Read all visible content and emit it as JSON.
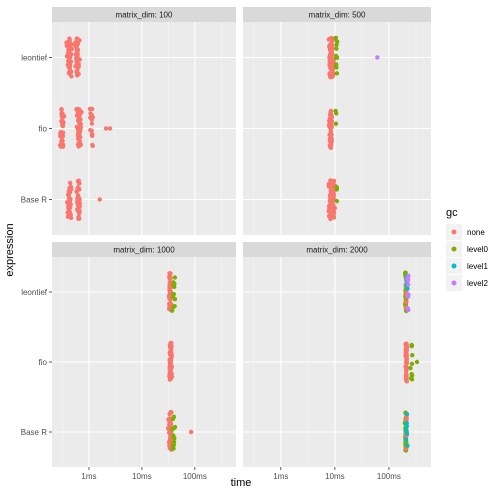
{
  "chart_data": {
    "type": "scatter",
    "subtype": "beeswarm",
    "title": "",
    "xlabel": "time",
    "ylabel": "expression",
    "x_scale": "log10",
    "x_unit": "ms",
    "xlim_ms": [
      0.2,
      600
    ],
    "x_ticks": [
      {
        "value_ms": 1,
        "label": "1ms"
      },
      {
        "value_ms": 10,
        "label": "10ms"
      },
      {
        "value_ms": 100,
        "label": "100ms"
      }
    ],
    "categories": [
      "Base R",
      "fio",
      "leontief"
    ],
    "legend": {
      "title": "gc",
      "position": "right",
      "entries": [
        {
          "name": "none",
          "color": "#F8766D"
        },
        {
          "name": "level0",
          "color": "#7CAE00"
        },
        {
          "name": "level1",
          "color": "#00BFC4"
        },
        {
          "name": "level2",
          "color": "#C77CFF"
        }
      ]
    },
    "grid": true,
    "panel_background": "#EBEBEB",
    "facets": [
      {
        "label": "matrix_dim: 100",
        "groups": [
          {
            "expression": "leontief",
            "clusters": [
              {
                "gc": "none",
                "center_ms": 0.42,
                "spread": 0.06,
                "n": 48
              },
              {
                "gc": "none",
                "center_ms": 0.6,
                "spread": 0.05,
                "n": 38
              }
            ],
            "outliers": []
          },
          {
            "expression": "fio",
            "clusters": [
              {
                "gc": "none",
                "center_ms": 0.31,
                "spread": 0.05,
                "n": 40
              },
              {
                "gc": "none",
                "center_ms": 0.65,
                "spread": 0.07,
                "n": 48
              },
              {
                "gc": "none",
                "center_ms": 1.1,
                "spread": 0.06,
                "n": 16
              }
            ],
            "outliers": [
              {
                "gc": "none",
                "x_ms": 2.1
              },
              {
                "gc": "none",
                "x_ms": 2.5
              }
            ]
          },
          {
            "expression": "Base R",
            "clusters": [
              {
                "gc": "none",
                "center_ms": 0.43,
                "spread": 0.05,
                "n": 40
              },
              {
                "gc": "none",
                "center_ms": 0.63,
                "spread": 0.05,
                "n": 36
              }
            ],
            "outliers": [
              {
                "gc": "none",
                "x_ms": 1.6
              }
            ]
          }
        ]
      },
      {
        "label": "matrix_dim: 500",
        "groups": [
          {
            "expression": "leontief",
            "clusters": [
              {
                "gc": "none",
                "center_ms": 8.7,
                "spread": 0.07,
                "n": 92
              },
              {
                "gc": "level0",
                "center_ms": 10.7,
                "spread": 0.04,
                "n": 12
              }
            ],
            "outliers": [
              {
                "gc": "level2",
                "x_ms": 61
              }
            ]
          },
          {
            "expression": "fio",
            "clusters": [
              {
                "gc": "none",
                "center_ms": 8.4,
                "spread": 0.05,
                "n": 52
              },
              {
                "gc": "level0",
                "center_ms": 10.3,
                "spread": 0.03,
                "n": 3
              }
            ],
            "outliers": []
          },
          {
            "expression": "Base R",
            "clusters": [
              {
                "gc": "none",
                "center_ms": 8.9,
                "spread": 0.08,
                "n": 100
              },
              {
                "gc": "level0",
                "center_ms": 11.0,
                "spread": 0.03,
                "n": 4
              }
            ],
            "outliers": []
          }
        ]
      },
      {
        "label": "matrix_dim: 1000",
        "groups": [
          {
            "expression": "leontief",
            "clusters": [
              {
                "gc": "none",
                "center_ms": 34,
                "spread": 0.04,
                "n": 54
              },
              {
                "gc": "level0",
                "center_ms": 40,
                "spread": 0.04,
                "n": 12
              }
            ],
            "outliers": []
          },
          {
            "expression": "fio",
            "clusters": [
              {
                "gc": "none",
                "center_ms": 35,
                "spread": 0.04,
                "n": 62
              }
            ],
            "outliers": []
          },
          {
            "expression": "Base R",
            "clusters": [
              {
                "gc": "none",
                "center_ms": 34,
                "spread": 0.05,
                "n": 58
              },
              {
                "gc": "level0",
                "center_ms": 40,
                "spread": 0.04,
                "n": 14
              }
            ],
            "outliers": [
              {
                "gc": "none",
                "x_ms": 85
              }
            ]
          }
        ]
      },
      {
        "label": "matrix_dim: 2000",
        "groups": [
          {
            "expression": "leontief",
            "clusters": [
              {
                "gc": "level0",
                "center_ms": 205,
                "spread": 0.02,
                "n": 40
              },
              {
                "gc": "none",
                "center_ms": 210,
                "spread": 0.02,
                "n": 10
              },
              {
                "gc": "level1",
                "center_ms": 215,
                "spread": 0.02,
                "n": 4
              },
              {
                "gc": "level2",
                "center_ms": 225,
                "spread": 0.02,
                "n": 10
              }
            ],
            "outliers": []
          },
          {
            "expression": "fio",
            "clusters": [
              {
                "gc": "none",
                "center_ms": 210,
                "spread": 0.02,
                "n": 60
              },
              {
                "gc": "level0",
                "center_ms": 265,
                "spread": 0.03,
                "n": 10
              }
            ],
            "outliers": [
              {
                "gc": "level0",
                "x_ms": 330
              }
            ]
          },
          {
            "expression": "Base R",
            "clusters": [
              {
                "gc": "level0",
                "center_ms": 205,
                "spread": 0.02,
                "n": 44
              },
              {
                "gc": "none",
                "center_ms": 210,
                "spread": 0.02,
                "n": 10
              },
              {
                "gc": "level1",
                "center_ms": 212,
                "spread": 0.02,
                "n": 8
              }
            ],
            "outliers": []
          }
        ]
      }
    ]
  }
}
